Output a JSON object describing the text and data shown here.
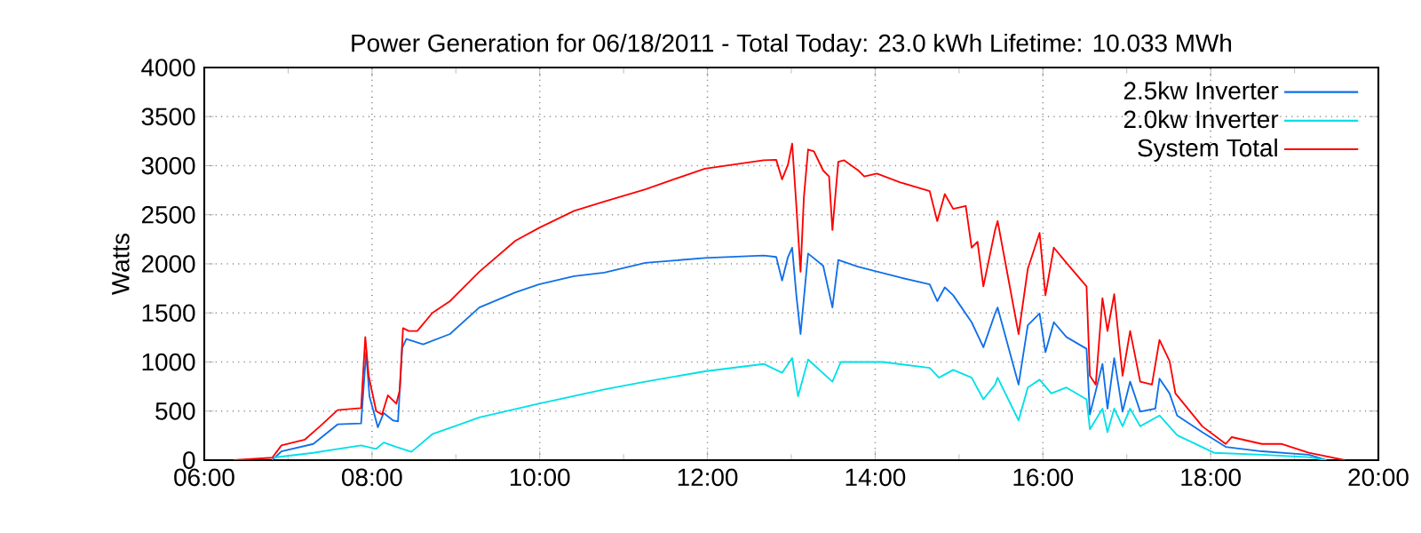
{
  "chart_data": {
    "type": "line",
    "title": "Power Generation for 06/18/2011 - Total Today: 23.0 kWh   Lifetime: 10.033 MWh",
    "ylabel": "Watts",
    "xlim": [
      6,
      20
    ],
    "ylim": [
      0,
      4000
    ],
    "xticks": [
      {
        "value": 6,
        "label": "06:00"
      },
      {
        "value": 7,
        "label": null
      },
      {
        "value": 8,
        "label": "08:00"
      },
      {
        "value": 9,
        "label": null
      },
      {
        "value": 10,
        "label": "10:00"
      },
      {
        "value": 11,
        "label": null
      },
      {
        "value": 12,
        "label": "12:00"
      },
      {
        "value": 13,
        "label": null
      },
      {
        "value": 14,
        "label": "14:00"
      },
      {
        "value": 15,
        "label": null
      },
      {
        "value": 16,
        "label": "16:00"
      },
      {
        "value": 17,
        "label": null
      },
      {
        "value": 18,
        "label": "18:00"
      },
      {
        "value": 19,
        "label": null
      },
      {
        "value": 20,
        "label": "20:00"
      }
    ],
    "yticks": [
      0,
      500,
      1000,
      1500,
      2000,
      2500,
      3000,
      3500,
      4000
    ],
    "grid": true,
    "legend": "top right",
    "marker": "none",
    "line_style": "solid",
    "series": [
      {
        "name": "2.5kw Inverter",
        "color": "#1070e8",
        "x": [
          6.81,
          6.92,
          7.3,
          7.59,
          7.87,
          7.93,
          7.97,
          8.07,
          8.14,
          8.25,
          8.31,
          8.36,
          8.41,
          8.61,
          8.93,
          9.28,
          9.71,
          9.99,
          10.41,
          10.77,
          11.26,
          11.97,
          12.67,
          12.82,
          12.89,
          12.96,
          13.01,
          13.06,
          13.11,
          13.2,
          13.38,
          13.49,
          13.56,
          13.8,
          14.3,
          14.65,
          14.74,
          14.83,
          14.93,
          15.15,
          15.29,
          15.43,
          15.46,
          15.71,
          15.82,
          15.96,
          16.03,
          16.13,
          16.28,
          16.52,
          16.56,
          16.71,
          16.77,
          16.85,
          16.95,
          17.04,
          17.16,
          17.34,
          17.39,
          17.51,
          17.6,
          17.9,
          18.18,
          18.61,
          19.17,
          19.38
        ],
        "values": [
          0,
          90,
          165,
          365,
          375,
          1100,
          650,
          335,
          480,
          405,
          395,
          1145,
          1235,
          1180,
          1285,
          1555,
          1710,
          1790,
          1875,
          1910,
          2010,
          2060,
          2085,
          2070,
          1830,
          2070,
          2165,
          1680,
          1285,
          2105,
          1980,
          1555,
          2040,
          1970,
          1860,
          1790,
          1620,
          1760,
          1680,
          1405,
          1150,
          1495,
          1555,
          770,
          1375,
          1495,
          1100,
          1405,
          1255,
          1135,
          465,
          980,
          525,
          1040,
          495,
          800,
          495,
          525,
          830,
          680,
          455,
          285,
          135,
          90,
          55,
          0
        ]
      },
      {
        "name": "2.0kw Inverter",
        "color": "#00e0e8",
        "x": [
          6.81,
          7.3,
          7.87,
          8.05,
          8.14,
          8.29,
          8.47,
          8.72,
          9.28,
          9.99,
          10.77,
          11.26,
          11.97,
          12.67,
          12.89,
          13.01,
          13.08,
          13.2,
          13.49,
          13.59,
          14.09,
          14.65,
          14.76,
          14.93,
          15.15,
          15.29,
          15.43,
          15.46,
          15.71,
          15.82,
          15.96,
          16.1,
          16.28,
          16.52,
          16.56,
          16.71,
          16.77,
          16.85,
          16.95,
          17.04,
          17.16,
          17.39,
          17.6,
          18.04,
          18.61,
          19.17,
          19.38
        ],
        "values": [
          25,
          75,
          150,
          115,
          180,
          135,
          85,
          265,
          435,
          575,
          720,
          800,
          905,
          980,
          890,
          1040,
          650,
          1025,
          800,
          1000,
          1000,
          940,
          840,
          920,
          840,
          620,
          770,
          840,
          405,
          740,
          820,
          680,
          740,
          620,
          315,
          525,
          285,
          525,
          345,
          525,
          345,
          455,
          255,
          75,
          55,
          30,
          0
        ]
      },
      {
        "name": "System Total",
        "color": "#ff0000",
        "x": [
          6.35,
          6.81,
          6.92,
          7.2,
          7.38,
          7.59,
          7.87,
          7.92,
          7.96,
          8.05,
          8.12,
          8.19,
          8.29,
          8.33,
          8.37,
          8.44,
          8.54,
          8.72,
          8.93,
          9.28,
          9.71,
          9.99,
          10.41,
          10.77,
          11.26,
          11.97,
          12.67,
          12.82,
          12.89,
          12.96,
          13.01,
          13.06,
          13.11,
          13.15,
          13.2,
          13.27,
          13.38,
          13.45,
          13.49,
          13.56,
          13.63,
          13.8,
          13.87,
          14.02,
          14.3,
          14.65,
          14.74,
          14.83,
          14.93,
          15.08,
          15.15,
          15.22,
          15.29,
          15.43,
          15.46,
          15.71,
          15.82,
          15.96,
          16.03,
          16.13,
          16.28,
          16.52,
          16.56,
          16.63,
          16.71,
          16.77,
          16.85,
          16.95,
          17.04,
          17.16,
          17.3,
          17.39,
          17.51,
          17.58,
          17.9,
          18.18,
          18.25,
          18.61,
          18.85,
          19.17,
          19.6
        ],
        "values": [
          0,
          25,
          150,
          210,
          345,
          510,
          530,
          1255,
          860,
          500,
          465,
          660,
          575,
          710,
          1345,
          1315,
          1315,
          1500,
          1620,
          1920,
          2235,
          2365,
          2540,
          2635,
          2760,
          2970,
          3055,
          3060,
          2860,
          3010,
          3225,
          2590,
          1920,
          2680,
          3165,
          3145,
          2950,
          2890,
          2345,
          3040,
          3055,
          2950,
          2890,
          2920,
          2830,
          2740,
          2435,
          2710,
          2560,
          2590,
          2165,
          2225,
          1770,
          2345,
          2436,
          1285,
          1950,
          2315,
          1680,
          2165,
          2010,
          1770,
          860,
          770,
          1650,
          1315,
          1690,
          860,
          1315,
          800,
          770,
          1225,
          1010,
          680,
          345,
          165,
          235,
          165,
          165,
          75,
          0
        ]
      }
    ]
  }
}
